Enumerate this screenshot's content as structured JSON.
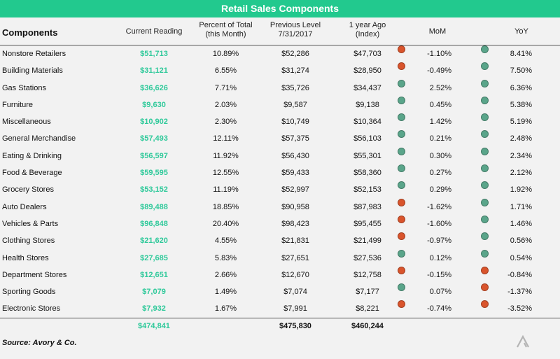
{
  "title": "Retail Sales Components",
  "headers": {
    "components": "Components",
    "current": "Current Reading",
    "pct_line1": "Percent of Total",
    "pct_line2": "(this Month)",
    "prev_line1": "Previous Level",
    "prev_line2": "7/31/2017",
    "ago_line1": "1 year Ago",
    "ago_line2": "(Index)",
    "mom": "MoM",
    "yoy": "YoY"
  },
  "colors": {
    "accent": "#22c98e",
    "positive": "#5aa58a",
    "negative": "#d9542c",
    "value_text": "#2ec99a"
  },
  "chart_data": {
    "type": "table",
    "title": "Retail Sales Components",
    "columns": [
      "Components",
      "Current Reading",
      "Percent of Total (this Month)",
      "Previous Level 7/31/2017",
      "1 year Ago (Index)",
      "MoM",
      "YoY"
    ],
    "rows": [
      {
        "name": "Nonstore Retailers",
        "current": "$51,713",
        "pct": "10.89%",
        "prev": "$52,286",
        "ago": "$47,703",
        "mom": "-1.10%",
        "mom_status": "negative",
        "yoy": "8.41%",
        "yoy_status": "positive"
      },
      {
        "name": "Building Materials",
        "current": "$31,121",
        "pct": "6.55%",
        "prev": "$31,274",
        "ago": "$28,950",
        "mom": "-0.49%",
        "mom_status": "negative",
        "yoy": "7.50%",
        "yoy_status": "positive"
      },
      {
        "name": "Gas Stations",
        "current": "$36,626",
        "pct": "7.71%",
        "prev": "$35,726",
        "ago": "$34,437",
        "mom": "2.52%",
        "mom_status": "positive",
        "yoy": "6.36%",
        "yoy_status": "positive"
      },
      {
        "name": "Furniture",
        "current": "$9,630",
        "pct": "2.03%",
        "prev": "$9,587",
        "ago": "$9,138",
        "mom": "0.45%",
        "mom_status": "positive",
        "yoy": "5.38%",
        "yoy_status": "positive"
      },
      {
        "name": "Miscellaneous",
        "current": "$10,902",
        "pct": "2.30%",
        "prev": "$10,749",
        "ago": "$10,364",
        "mom": "1.42%",
        "mom_status": "positive",
        "yoy": "5.19%",
        "yoy_status": "positive"
      },
      {
        "name": "General Merchandise",
        "current": "$57,493",
        "pct": "12.11%",
        "prev": "$57,375",
        "ago": "$56,103",
        "mom": "0.21%",
        "mom_status": "positive",
        "yoy": "2.48%",
        "yoy_status": "positive"
      },
      {
        "name": "Eating & Drinking",
        "current": "$56,597",
        "pct": "11.92%",
        "prev": "$56,430",
        "ago": "$55,301",
        "mom": "0.30%",
        "mom_status": "positive",
        "yoy": "2.34%",
        "yoy_status": "positive"
      },
      {
        "name": "Food & Beverage",
        "current": "$59,595",
        "pct": "12.55%",
        "prev": "$59,433",
        "ago": "$58,360",
        "mom": "0.27%",
        "mom_status": "positive",
        "yoy": "2.12%",
        "yoy_status": "positive"
      },
      {
        "name": "Grocery Stores",
        "current": "$53,152",
        "pct": "11.19%",
        "prev": "$52,997",
        "ago": "$52,153",
        "mom": "0.29%",
        "mom_status": "positive",
        "yoy": "1.92%",
        "yoy_status": "positive"
      },
      {
        "name": "Auto Dealers",
        "current": "$89,488",
        "pct": "18.85%",
        "prev": "$90,958",
        "ago": "$87,983",
        "mom": "-1.62%",
        "mom_status": "negative",
        "yoy": "1.71%",
        "yoy_status": "positive"
      },
      {
        "name": "Vehicles & Parts",
        "current": "$96,848",
        "pct": "20.40%",
        "prev": "$98,423",
        "ago": "$95,455",
        "mom": "-1.60%",
        "mom_status": "negative",
        "yoy": "1.46%",
        "yoy_status": "positive"
      },
      {
        "name": "Clothing Stores",
        "current": "$21,620",
        "pct": "4.55%",
        "prev": "$21,831",
        "ago": "$21,499",
        "mom": "-0.97%",
        "mom_status": "negative",
        "yoy": "0.56%",
        "yoy_status": "positive"
      },
      {
        "name": "Health Stores",
        "current": "$27,685",
        "pct": "5.83%",
        "prev": "$27,651",
        "ago": "$27,536",
        "mom": "0.12%",
        "mom_status": "positive",
        "yoy": "0.54%",
        "yoy_status": "positive"
      },
      {
        "name": "Department Stores",
        "current": "$12,651",
        "pct": "2.66%",
        "prev": "$12,670",
        "ago": "$12,758",
        "mom": "-0.15%",
        "mom_status": "negative",
        "yoy": "-0.84%",
        "yoy_status": "negative"
      },
      {
        "name": "Sporting Goods",
        "current": "$7,079",
        "pct": "1.49%",
        "prev": "$7,074",
        "ago": "$7,177",
        "mom": "0.07%",
        "mom_status": "positive",
        "yoy": "-1.37%",
        "yoy_status": "negative"
      },
      {
        "name": "Electronic Stores",
        "current": "$7,932",
        "pct": "1.67%",
        "prev": "$7,991",
        "ago": "$8,221",
        "mom": "-0.74%",
        "mom_status": "negative",
        "yoy": "-3.52%",
        "yoy_status": "negative"
      }
    ],
    "totals": {
      "current": "$474,841",
      "prev": "$475,830",
      "ago": "$460,244"
    }
  },
  "source": "Source: Avory & Co.",
  "logo_icon": "chevron-logo-icon"
}
